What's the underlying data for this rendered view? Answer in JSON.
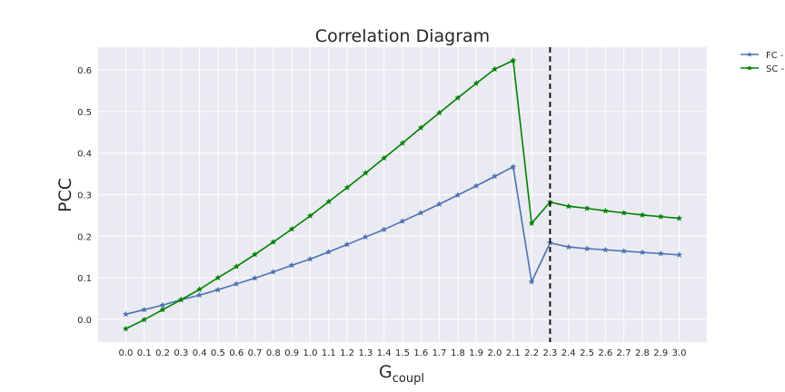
{
  "chart_data": {
    "type": "line",
    "title": "Correlation Diagram",
    "xlabel_main": "G",
    "xlabel_sub": "coupl",
    "ylabel": "PCC",
    "x": [
      0.0,
      0.1,
      0.2,
      0.3,
      0.4,
      0.5,
      0.6,
      0.7,
      0.8,
      0.9,
      1.0,
      1.1,
      1.2,
      1.3,
      1.4,
      1.5,
      1.6,
      1.7,
      1.8,
      1.9,
      2.0,
      2.1,
      2.2,
      2.3,
      2.4,
      2.5,
      2.6,
      2.7,
      2.8,
      2.9,
      3.0
    ],
    "x_tick_labels": [
      "0.0",
      "0.1",
      "0.2",
      "0.3",
      "0.4",
      "0.5",
      "0.6",
      "0.7",
      "0.8",
      "0.9",
      "1.0",
      "1.1",
      "1.2",
      "1.3",
      "1.4",
      "1.5",
      "1.6",
      "1.7",
      "1.8",
      "1.9",
      "2.0",
      "2.1",
      "2.2",
      "2.3",
      "2.4",
      "2.5",
      "2.6",
      "2.7",
      "2.8",
      "2.9",
      "3.0"
    ],
    "xlim": [
      -0.15,
      3.15
    ],
    "y_ticks": [
      0.0,
      0.1,
      0.2,
      0.3,
      0.4,
      0.5,
      0.6
    ],
    "y_tick_labels": [
      "0.0",
      "0.1",
      "0.2",
      "0.3",
      "0.4",
      "0.5",
      "0.6"
    ],
    "ylim": [
      -0.055,
      0.655
    ],
    "grid": true,
    "legend_position": "outside top-right",
    "vline": {
      "x": 2.3,
      "style": "dashed",
      "color": "#000000"
    },
    "series": [
      {
        "name": "FC -",
        "color": "#4c72b0",
        "marker": "star",
        "values": [
          0.012,
          0.023,
          0.034,
          0.047,
          0.058,
          0.071,
          0.085,
          0.099,
          0.114,
          0.13,
          0.145,
          0.162,
          0.18,
          0.198,
          0.216,
          0.236,
          0.256,
          0.277,
          0.299,
          0.321,
          0.344,
          0.367,
          0.09,
          0.184,
          0.174,
          0.17,
          0.167,
          0.164,
          0.161,
          0.158,
          0.155
        ]
      },
      {
        "name": "SC -",
        "color": "#008000",
        "marker": "star",
        "values": [
          -0.023,
          -0.001,
          0.023,
          0.047,
          0.072,
          0.1,
          0.127,
          0.156,
          0.186,
          0.217,
          0.249,
          0.283,
          0.317,
          0.352,
          0.388,
          0.424,
          0.461,
          0.497,
          0.533,
          0.568,
          0.602,
          0.623,
          0.231,
          0.282,
          0.272,
          0.267,
          0.261,
          0.256,
          0.251,
          0.247,
          0.243
        ]
      }
    ]
  }
}
